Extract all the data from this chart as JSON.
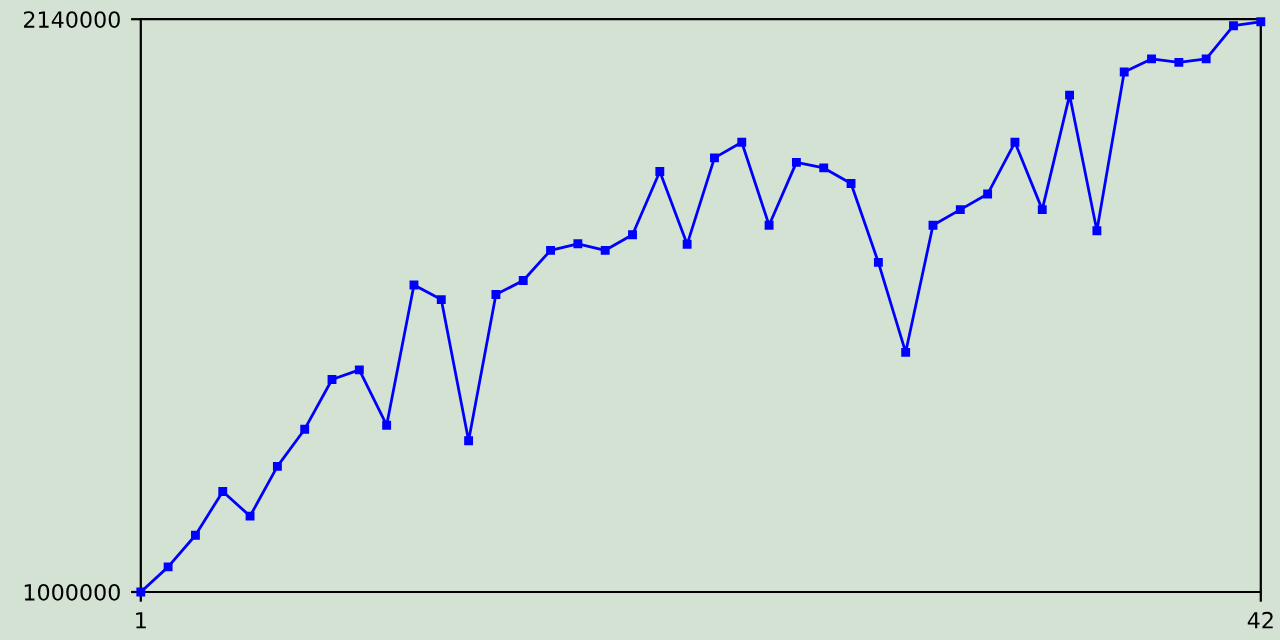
{
  "chart_data": {
    "type": "line",
    "marker": "square",
    "line_style": "solid",
    "grid": false,
    "legend": false,
    "x": [
      1,
      2,
      3,
      4,
      5,
      6,
      7,
      8,
      9,
      10,
      11,
      12,
      13,
      14,
      15,
      16,
      17,
      18,
      19,
      20,
      21,
      22,
      23,
      24,
      25,
      26,
      27,
      28,
      29,
      30,
      31,
      32,
      33,
      34,
      35,
      36,
      37,
      38,
      39,
      40,
      41,
      42
    ],
    "series": [
      {
        "color": "#0000ff",
        "values": [
          1000000,
          1050000,
          1113000,
          1200000,
          1151000,
          1250000,
          1324000,
          1423000,
          1442000,
          1332000,
          1611000,
          1582000,
          1301000,
          1592000,
          1620000,
          1680000,
          1693000,
          1680000,
          1711000,
          1837000,
          1692000,
          1864000,
          1895000,
          1730000,
          1855000,
          1844000,
          1813000,
          1656000,
          1477000,
          1730000,
          1761000,
          1792000,
          1895000,
          1761000,
          1989000,
          1719000,
          2035000,
          2061000,
          2054000,
          2061000,
          2127000,
          2135000
        ]
      }
    ],
    "xlim": [
      1,
      42
    ],
    "xticks": [
      1,
      42
    ],
    "ylim": [
      1000000,
      2140000
    ],
    "yticks": [
      1000000,
      2140000
    ]
  }
}
